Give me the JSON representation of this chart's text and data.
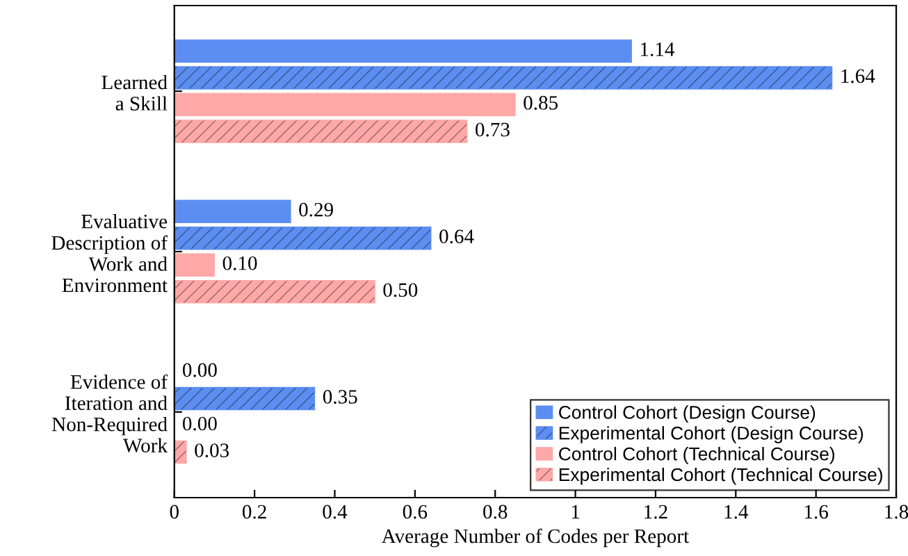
{
  "chart_data": {
    "type": "bar",
    "orientation": "horizontal",
    "categories": [
      "Learned\na Skill",
      "Evaluative\nDescription of\nWork and\nEnvironment",
      "Evidence of\nIteration and\nNon-Required\nWork"
    ],
    "series": [
      {
        "name": "Control Cohort (Design Course)",
        "color": "#5b8ef0",
        "values": [
          1.14,
          0.29,
          0.0
        ],
        "value_labels": [
          "1.14",
          "0.29",
          "0.00"
        ]
      },
      {
        "name": "Experimental Cohort (Design Course)",
        "color": "#5b8ef0",
        "values": [
          1.64,
          0.64,
          0.35
        ],
        "value_labels": [
          "1.64",
          "0.64",
          "0.35"
        ]
      },
      {
        "name": "Control Cohort (Technical Course)",
        "color": "#ffa8a8",
        "values": [
          0.85,
          0.1,
          0.0
        ],
        "value_labels": [
          "0.85",
          "0.10",
          "0.00"
        ]
      },
      {
        "name": "Experimental Cohort (Technical Course)",
        "color": "#ffa8a8",
        "values": [
          0.73,
          0.5,
          0.03
        ],
        "value_labels": [
          "0.73",
          "0.50",
          "0.03"
        ]
      }
    ],
    "xlabel": "Average Number of Codes per Report",
    "xlim": [
      0,
      1.8
    ],
    "xticks": [
      0,
      {
        "value": 0.2,
        "label": "0.2"
      },
      {
        "value": 0.4,
        "label": "0.4"
      },
      {
        "value": 0.6,
        "label": "0.6"
      },
      {
        "value": 0.8,
        "label": "0.8"
      },
      1,
      {
        "value": 1.2,
        "label": "1.2"
      },
      {
        "value": 1.4,
        "label": "1.4"
      },
      {
        "value": 1.6,
        "label": "1.6"
      },
      {
        "value": 1.8,
        "label": "1.8"
      }
    ],
    "grid": false,
    "legend": "bottom right"
  }
}
